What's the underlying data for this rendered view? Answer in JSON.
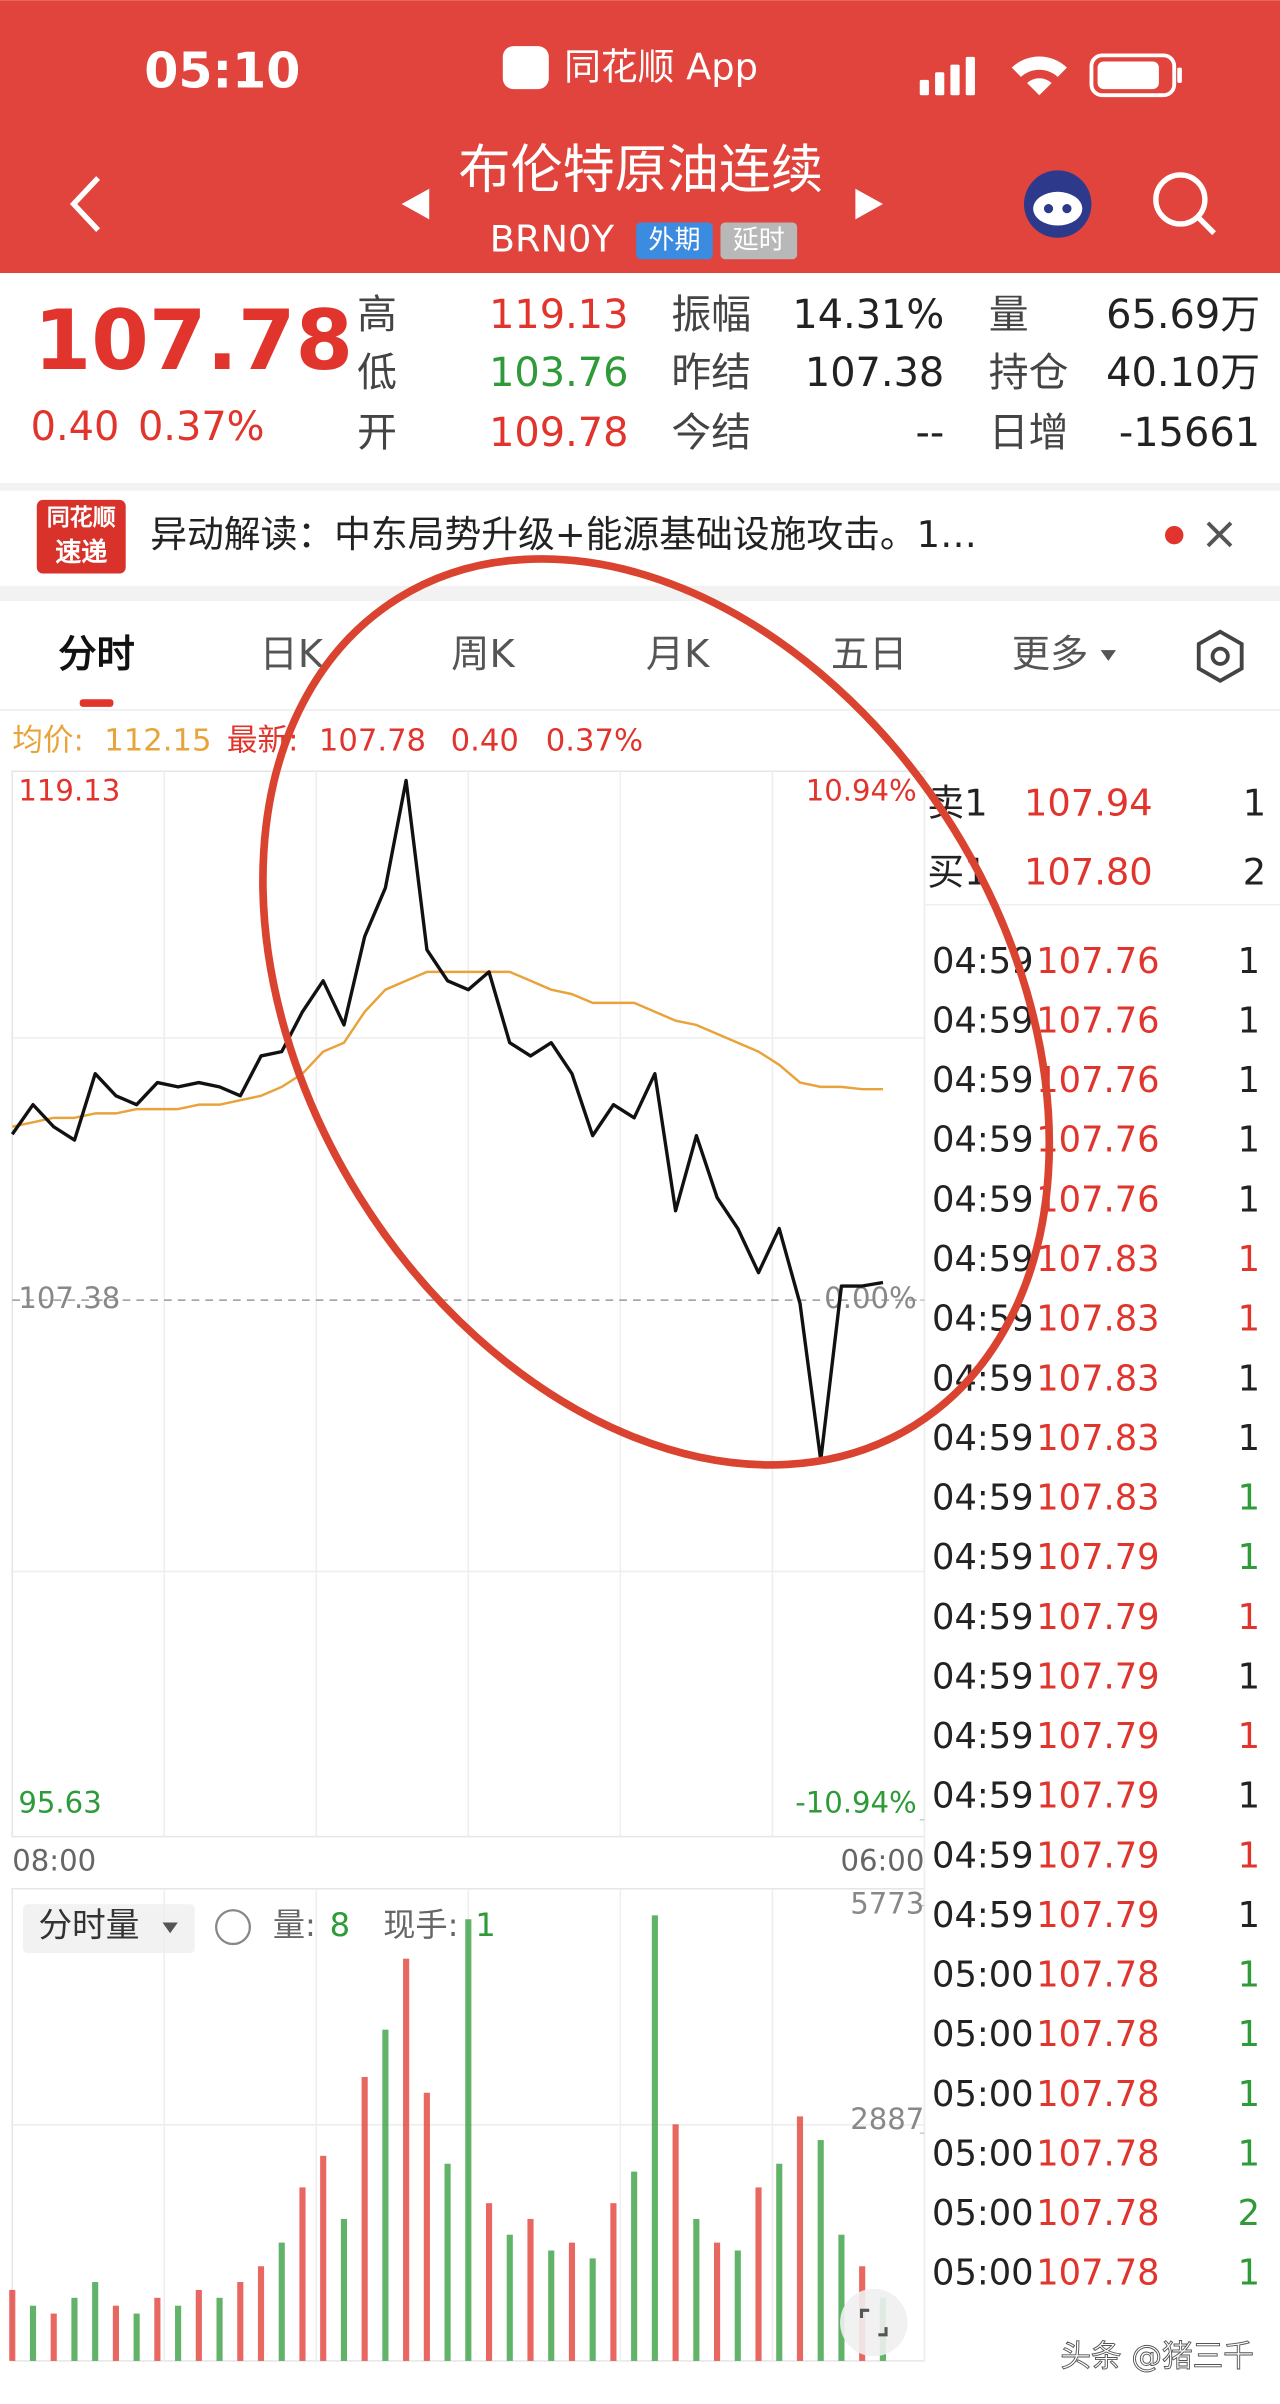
{
  "status_bar": {
    "time": "05:10",
    "app": "同花顺 App"
  },
  "header": {
    "title": "布伦特原油连续",
    "code": "BRN0Y",
    "tags": [
      "外期",
      "延时"
    ]
  },
  "quote": {
    "price": "107.78",
    "change": "0.40",
    "change_percent": "0.37%",
    "stats": [
      {
        "label": "高",
        "value": "119.13",
        "color": "#e0342c"
      },
      {
        "label": "振幅",
        "value": "14.31%",
        "color": "#222222"
      },
      {
        "label": "量",
        "value": "65.69万",
        "color": "#222222"
      },
      {
        "label": "低",
        "value": "103.76",
        "color": "#2e9a38"
      },
      {
        "label": "昨结",
        "value": "107.38",
        "color": "#222222"
      },
      {
        "label": "持仓",
        "value": "40.10万",
        "color": "#222222"
      },
      {
        "label": "开",
        "value": "109.78",
        "color": "#e0342c"
      },
      {
        "label": "今结",
        "value": "--",
        "color": "#222222"
      },
      {
        "label": "日增",
        "value": "-15661",
        "color": "#222222"
      }
    ]
  },
  "news": {
    "badge": [
      "同花顺",
      "速递"
    ],
    "text": "异动解读：中东局势升级+能源基础设施攻击。1…"
  },
  "tabs": [
    "分时",
    "日K",
    "周K",
    "月K",
    "五日",
    "更多"
  ],
  "info": {
    "avg_label": "均价:",
    "avg": "112.15",
    "latest_label": "最新:",
    "latest": "107.78",
    "change": "0.40",
    "change_percent": "0.37%"
  },
  "volume_bar": {
    "selector": "分时量",
    "count_label": "量:",
    "count": "8",
    "hand_label": "现手:",
    "hand": "1"
  },
  "chart_data": [
    {
      "type": "line",
      "categories": [
        "08:00",
        null,
        null,
        null,
        null,
        null,
        null,
        null,
        null,
        null,
        null,
        null,
        null,
        null,
        null,
        null,
        null,
        null,
        null,
        null,
        null,
        null,
        null,
        null,
        null,
        null,
        null,
        null,
        null,
        null,
        null,
        null,
        null,
        null,
        null,
        null,
        null,
        null,
        null,
        null,
        null,
        null,
        null,
        null,
        "06:00"
      ],
      "series": [
        {
          "color": "#111111",
          "values": [
            111.13,
            111.8,
            111.3,
            111.0,
            112.5,
            112.0,
            111.8,
            112.3,
            112.2,
            112.3,
            112.2,
            112.0,
            112.9,
            113.0,
            113.9,
            114.6,
            113.6,
            115.6,
            116.7,
            119.13,
            115.3,
            114.6,
            114.4,
            114.8,
            113.2,
            112.9,
            113.2,
            112.5,
            111.1,
            111.8,
            111.5,
            112.5,
            109.4,
            111.1,
            109.7,
            109.0,
            108.0,
            109.0,
            107.3,
            103.76,
            107.7,
            107.7,
            107.78,
            null,
            null
          ]
        },
        {
          "color": "#e8a33a",
          "values": [
            111.3,
            111.4,
            111.5,
            111.5,
            111.6,
            111.6,
            111.7,
            111.7,
            111.7,
            111.8,
            111.8,
            111.9,
            112.0,
            112.2,
            112.5,
            113.0,
            113.2,
            113.9,
            114.4,
            114.6,
            114.8,
            114.8,
            114.8,
            114.8,
            114.8,
            114.6,
            114.4,
            114.3,
            114.1,
            114.1,
            114.1,
            113.9,
            113.7,
            113.6,
            113.4,
            113.2,
            113.0,
            112.7,
            112.3,
            112.2,
            112.2,
            112.15,
            112.15,
            null,
            null
          ]
        }
      ],
      "ylim": [
        95.63,
        119.13
      ],
      "yticks": [
        119.13,
        107.38,
        95.63
      ],
      "y2lim": [
        -10.94,
        10.94
      ],
      "y2ticks": [
        {
          "value": 10.94,
          "label": "10.94%"
        },
        {
          "value": 0,
          "label": "0.00%"
        },
        {
          "value": -10.94,
          "label": "-10.94%"
        }
      ],
      "grid": true
    },
    {
      "type": "bar",
      "values": [
        900,
        700,
        600,
        800,
        1000,
        700,
        600,
        800,
        700,
        900,
        800,
        1000,
        1200,
        1500,
        2200,
        2600,
        1800,
        3600,
        4200,
        5100,
        3400,
        2500,
        5600,
        2000,
        1600,
        1800,
        1400,
        1500,
        1300,
        2000,
        2400,
        5650,
        3000,
        1800,
        1500,
        1400,
        2200,
        2500,
        3100,
        2800,
        1600,
        1200,
        800,
        null,
        null
      ],
      "colors": [
        "#e0342c",
        "#2e9a38",
        "#e0342c",
        "#2e9a38",
        "#2e9a38",
        "#e0342c",
        "#2e9a38",
        "#e0342c",
        "#2e9a38",
        "#e0342c",
        "#2e9a38",
        "#e0342c",
        "#e0342c",
        "#2e9a38",
        "#e0342c",
        "#e0342c",
        "#2e9a38",
        "#e0342c",
        "#2e9a38",
        "#e0342c",
        "#e0342c",
        "#2e9a38",
        "#2e9a38",
        "#e0342c",
        "#2e9a38",
        "#e0342c",
        "#2e9a38",
        "#e0342c",
        "#2e9a38",
        "#e0342c",
        "#2e9a38",
        "#2e9a38",
        "#e0342c",
        "#2e9a38",
        "#e0342c",
        "#2e9a38",
        "#e0342c",
        "#2e9a38",
        "#e0342c",
        "#2e9a38",
        "#2e9a38",
        "#e0342c",
        "#2e9a38",
        null,
        null
      ],
      "ylim": [
        0,
        5773
      ],
      "yticks": [
        2887,
        5773
      ]
    }
  ],
  "order_book": [
    {
      "side": "卖1",
      "price": "107.94",
      "qty": "1"
    },
    {
      "side": "买1",
      "price": "107.80",
      "qty": "2"
    }
  ],
  "trades": [
    {
      "time": "04:59",
      "price": "107.76",
      "qty": "1",
      "qty_color": "#222222"
    },
    {
      "time": "04:59",
      "price": "107.76",
      "qty": "1",
      "qty_color": "#222222"
    },
    {
      "time": "04:59",
      "price": "107.76",
      "qty": "1",
      "qty_color": "#222222"
    },
    {
      "time": "04:59",
      "price": "107.76",
      "qty": "1",
      "qty_color": "#222222"
    },
    {
      "time": "04:59",
      "price": "107.76",
      "qty": "1",
      "qty_color": "#222222"
    },
    {
      "time": "04:59",
      "price": "107.83",
      "qty": "1",
      "qty_color": "#e0342c"
    },
    {
      "time": "04:59",
      "price": "107.83",
      "qty": "1",
      "qty_color": "#e0342c"
    },
    {
      "time": "04:59",
      "price": "107.83",
      "qty": "1",
      "qty_color": "#222222"
    },
    {
      "time": "04:59",
      "price": "107.83",
      "qty": "1",
      "qty_color": "#222222"
    },
    {
      "time": "04:59",
      "price": "107.83",
      "qty": "1",
      "qty_color": "#2e9a38"
    },
    {
      "time": "04:59",
      "price": "107.79",
      "qty": "1",
      "qty_color": "#2e9a38"
    },
    {
      "time": "04:59",
      "price": "107.79",
      "qty": "1",
      "qty_color": "#e0342c"
    },
    {
      "time": "04:59",
      "price": "107.79",
      "qty": "1",
      "qty_color": "#222222"
    },
    {
      "time": "04:59",
      "price": "107.79",
      "qty": "1",
      "qty_color": "#e0342c"
    },
    {
      "time": "04:59",
      "price": "107.79",
      "qty": "1",
      "qty_color": "#222222"
    },
    {
      "time": "04:59",
      "price": "107.79",
      "qty": "1",
      "qty_color": "#e0342c"
    },
    {
      "time": "04:59",
      "price": "107.79",
      "qty": "1",
      "qty_color": "#222222"
    },
    {
      "time": "05:00",
      "price": "107.78",
      "qty": "1",
      "qty_color": "#2e9a38"
    },
    {
      "time": "05:00",
      "price": "107.78",
      "qty": "1",
      "qty_color": "#2e9a38"
    },
    {
      "time": "05:00",
      "price": "107.78",
      "qty": "1",
      "qty_color": "#2e9a38"
    },
    {
      "time": "05:00",
      "price": "107.78",
      "qty": "1",
      "qty_color": "#2e9a38"
    },
    {
      "time": "05:00",
      "price": "107.78",
      "qty": "2",
      "qty_color": "#2e9a38"
    },
    {
      "time": "05:00",
      "price": "107.78",
      "qty": "1",
      "qty_color": "#2e9a38"
    }
  ],
  "watermark": "头条 @猪三千"
}
